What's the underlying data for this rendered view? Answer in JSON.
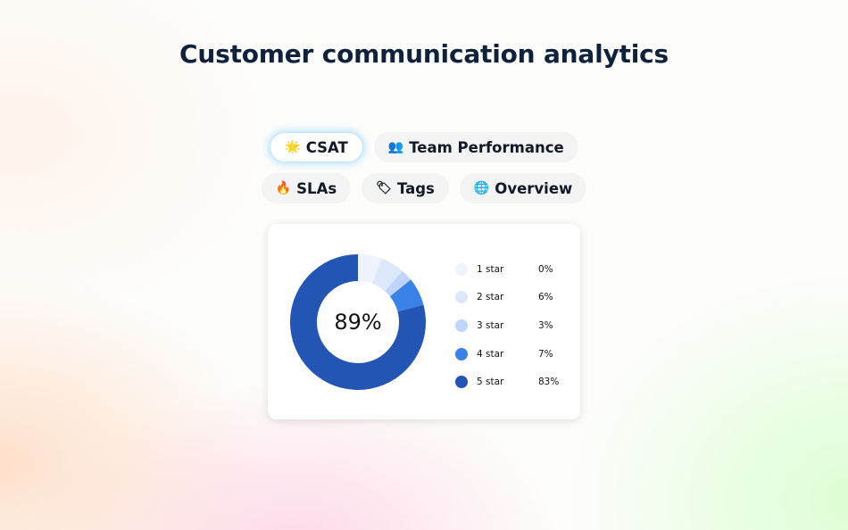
{
  "page": {
    "title": "Customer communication analytics"
  },
  "tabs": [
    {
      "icon": "star-badge-icon",
      "glyph": "🌟",
      "label": "CSAT",
      "active": true
    },
    {
      "icon": "people-icon",
      "glyph": "👥",
      "label": "Team Performance",
      "active": false
    },
    {
      "icon": "fire-icon",
      "glyph": "🔥",
      "label": "SLAs",
      "active": false
    },
    {
      "icon": "tag-icon",
      "glyph": "🏷",
      "label": "Tags",
      "active": false
    },
    {
      "icon": "globe-icon",
      "glyph": "🌐",
      "label": "Overview",
      "active": false
    }
  ],
  "csat": {
    "center_label": "89%"
  },
  "chart_data": {
    "type": "pie",
    "categories": [
      "1 star",
      "2 star",
      "3 star",
      "4 star",
      "5 star"
    ],
    "values": [
      0,
      6,
      3,
      7,
      83
    ],
    "value_labels": [
      "0%",
      "6%",
      "3%",
      "7%",
      "83%"
    ],
    "colors": [
      "#eef3fd",
      "#dce8fb",
      "#bed4f8",
      "#3b82e8",
      "#2356b4"
    ],
    "legend": "right"
  }
}
